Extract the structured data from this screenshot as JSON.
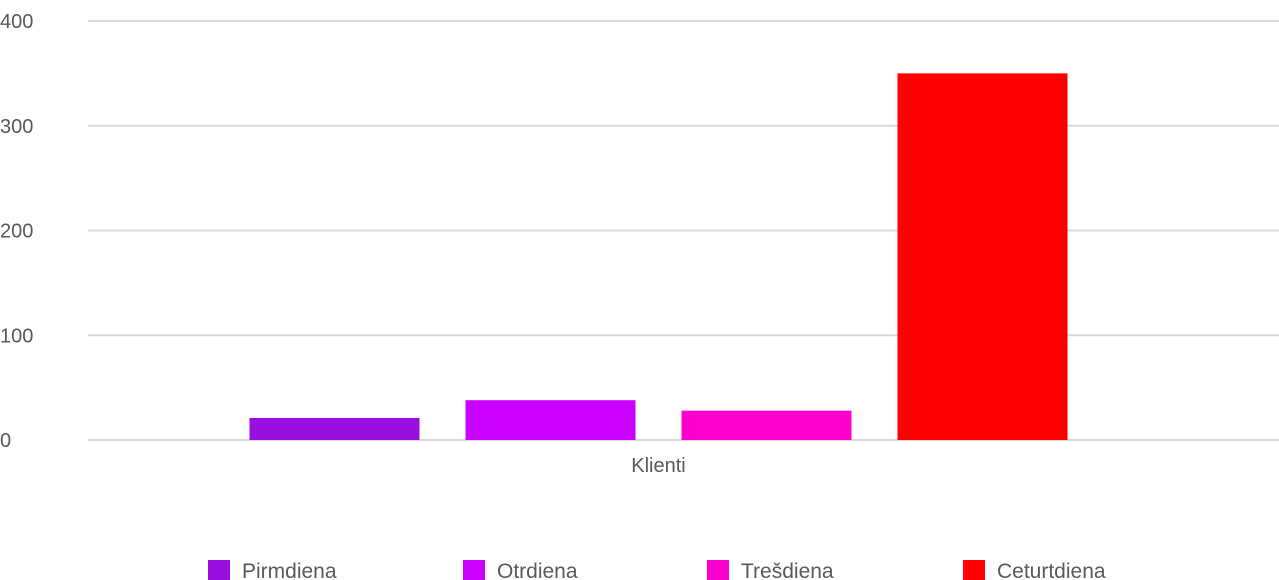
{
  "chart_data": {
    "type": "bar",
    "categories": [
      "Klienti"
    ],
    "series": [
      {
        "name": "Pirmdiena",
        "values": [
          21
        ],
        "color": "#9b0ee0"
      },
      {
        "name": "Otrdiena",
        "values": [
          38
        ],
        "color": "#cc00ff"
      },
      {
        "name": "Trešdiena",
        "values": [
          28
        ],
        "color": "#ff00cc"
      },
      {
        "name": "Ceturtdiena",
        "values": [
          350
        ],
        "color": "#ff0000"
      }
    ],
    "yticks": [
      "0",
      "100",
      "200",
      "300",
      "400"
    ],
    "ylim": [
      0,
      400
    ],
    "grid": true,
    "legend": "bottom"
  }
}
